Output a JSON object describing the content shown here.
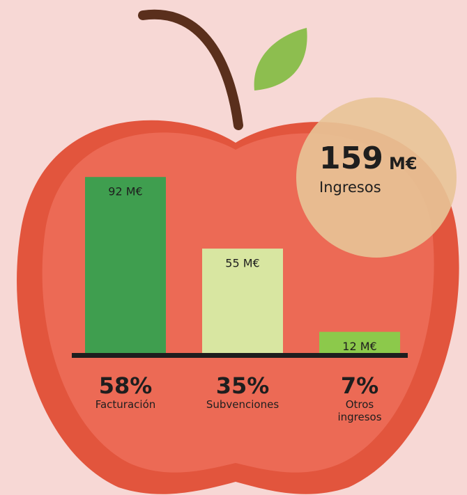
{
  "chart_data": {
    "type": "bar",
    "categories": [
      "Facturación",
      "Subvenciones",
      "Otros ingresos"
    ],
    "values": [
      92,
      55,
      12
    ],
    "value_labels": [
      "92 M€",
      "55 M€",
      "12 M€"
    ],
    "shares": [
      58,
      35,
      7
    ],
    "share_labels": [
      "58%",
      "35%",
      "7%"
    ],
    "colors": [
      "#3f9e4f",
      "#d8e6a1",
      "#8cc94b"
    ],
    "ylim": [
      0,
      100
    ],
    "total": 159,
    "total_unit": "M€",
    "total_caption": "Ingresos"
  }
}
